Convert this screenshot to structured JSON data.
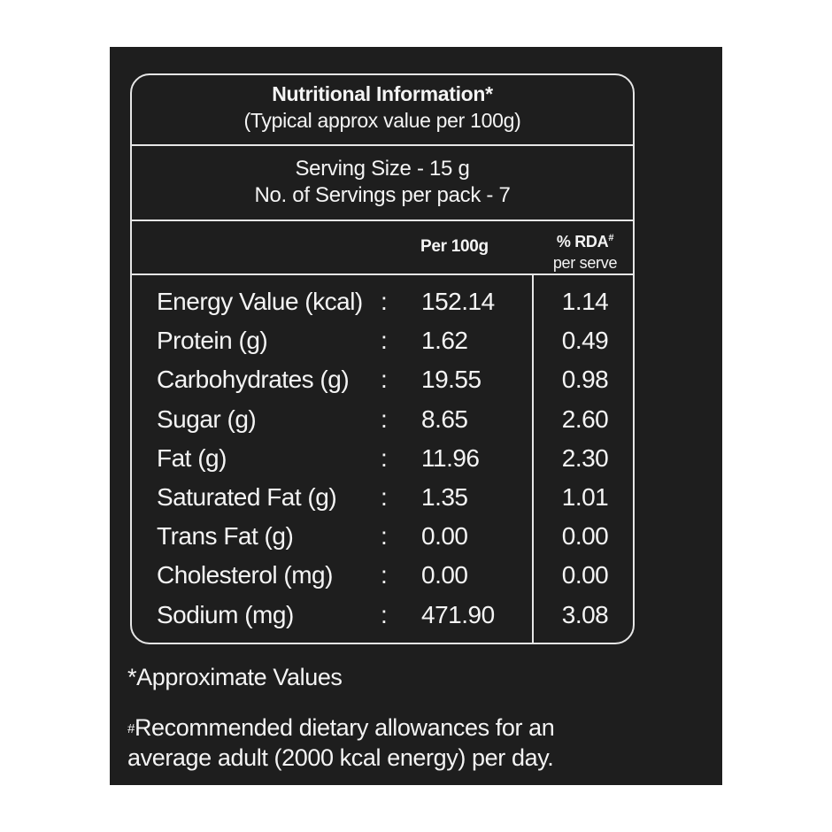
{
  "header": {
    "title": "Nutritional Information*",
    "subtitle": "(Typical approx value per 100g)"
  },
  "serving": {
    "size": "Serving Size - 15 g",
    "per_pack": "No. of Servings per pack - 7"
  },
  "columns": {
    "per100": "Per 100g",
    "rda_label": "% RDA",
    "rda_mark": "#",
    "rda_sub": "per serve"
  },
  "rows": [
    {
      "name": "Energy Value (kcal)",
      "sep": ":",
      "per100": "152.14",
      "rda": "1.14"
    },
    {
      "name": "Protein (g)",
      "sep": ":",
      "per100": "1.62",
      "rda": "0.49"
    },
    {
      "name": "Carbohydrates (g)",
      "sep": ":",
      "per100": "19.55",
      "rda": "0.98"
    },
    {
      "name": "Sugar (g)",
      "sep": ":",
      "per100": "8.65",
      "rda": "2.60"
    },
    {
      "name": "Fat (g)",
      "sep": ":",
      "per100": "11.96",
      "rda": "2.30"
    },
    {
      "name": "Saturated Fat (g)",
      "sep": ":",
      "per100": "1.35",
      "rda": "1.01"
    },
    {
      "name": "Trans Fat (g)",
      "sep": ":",
      "per100": "0.00",
      "rda": "0.00"
    },
    {
      "name": "Cholesterol (mg)",
      "sep": ":",
      "per100": "0.00",
      "rda": "0.00"
    },
    {
      "name": "Sodium (mg)",
      "sep": ":",
      "per100": "471.90",
      "rda": "3.08"
    }
  ],
  "notes": {
    "approx": "*Approximate Values",
    "rda_mark": "#",
    "rda_line1": "Recommended dietary allowances for an",
    "rda_line2": "average adult (2000 kcal energy) per day."
  },
  "colors": {
    "panel_bg": "#1e1e1e",
    "text": "#f4f4f4",
    "border": "#e6e6e6",
    "page_bg": "#ffffff"
  }
}
